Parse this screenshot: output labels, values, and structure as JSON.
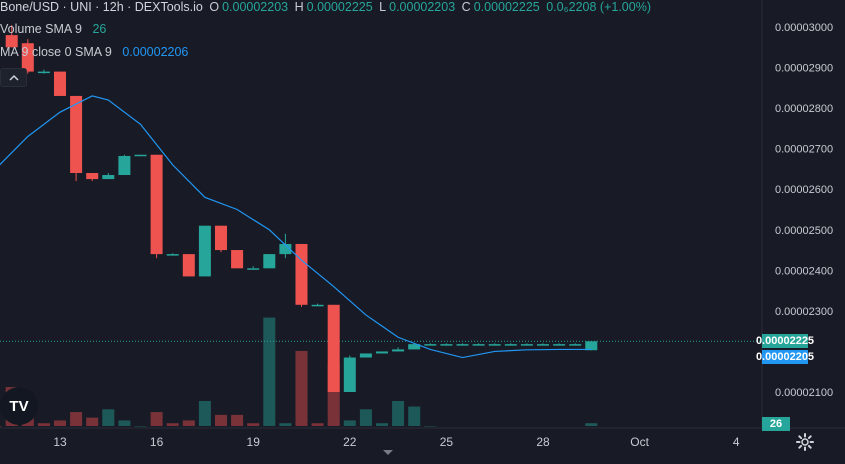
{
  "header": {
    "symbol": "Bone/USD · UNI · 12h · DEXTools.io",
    "o_key": "O",
    "o_val": "0.00002203",
    "h_key": "H",
    "h_val": "0.00002225",
    "l_key": "L",
    "l_val": "0.00002203",
    "c_key": "C",
    "c_val": "0.00002225",
    "change_val": "0.0₆2208 (+1.00%)"
  },
  "indicators": {
    "volume_label": "Volume SMA 9",
    "volume_val": "26",
    "ma_label": "MA 9 close 0 SMA 9",
    "ma_val": "0.00002206"
  },
  "badges": {
    "price_last": "0.00002225",
    "ma_last": "0.00002205",
    "volume_last": "26"
  },
  "tv_logo": "TV",
  "colors": {
    "up": "#26a69a",
    "down": "#ef5350",
    "ma": "#2196f3",
    "bg": "#181b25"
  },
  "icons": {
    "settings": "gear-icon",
    "collapse": "chevron-up-icon"
  },
  "chart_data": {
    "type": "candlestick",
    "y_ticks": [
      "0.00003000",
      "0.00002900",
      "0.00002800",
      "0.00002700",
      "0.00002600",
      "0.00002500",
      "0.00002400",
      "0.00002300",
      "0.00002100"
    ],
    "x_ticks": [
      "13",
      "16",
      "19",
      "22",
      "25",
      "28",
      "Oct",
      "4"
    ],
    "ylim": [
      2.04e-05,
      3.03e-05
    ],
    "series": [
      {
        "name": "Bone/USD",
        "candles": [
          {
            "day": 11.5,
            "o": 2.98e-05,
            "h": 3.005e-05,
            "l": 2.95e-05,
            "c": 2.95e-05
          },
          {
            "day": 12.0,
            "o": 2.96e-05,
            "h": 2.97e-05,
            "l": 2.885e-05,
            "c": 2.89e-05
          },
          {
            "day": 12.5,
            "o": 2.89e-05,
            "h": 2.895e-05,
            "l": 2.885e-05,
            "c": 2.89e-05
          },
          {
            "day": 13.0,
            "o": 2.89e-05,
            "h": 2.89e-05,
            "l": 2.83e-05,
            "c": 2.83e-05
          },
          {
            "day": 13.5,
            "o": 2.83e-05,
            "h": 2.83e-05,
            "l": 2.62e-05,
            "c": 2.64e-05
          },
          {
            "day": 14.0,
            "o": 2.64e-05,
            "h": 2.64e-05,
            "l": 2.62e-05,
            "c": 2.625e-05
          },
          {
            "day": 14.5,
            "o": 2.625e-05,
            "h": 2.64e-05,
            "l": 2.625e-05,
            "c": 2.635e-05
          },
          {
            "day": 15.0,
            "o": 2.635e-05,
            "h": 2.685e-05,
            "l": 2.635e-05,
            "c": 2.682e-05
          },
          {
            "day": 15.5,
            "o": 2.682e-05,
            "h": 2.685e-05,
            "l": 2.682e-05,
            "c": 2.685e-05
          },
          {
            "day": 16.0,
            "o": 2.685e-05,
            "h": 2.685e-05,
            "l": 2.43e-05,
            "c": 2.44e-05
          },
          {
            "day": 16.5,
            "o": 2.44e-05,
            "h": 2.442e-05,
            "l": 2.438e-05,
            "c": 2.44e-05
          },
          {
            "day": 17.0,
            "o": 2.44e-05,
            "h": 2.44e-05,
            "l": 2.385e-05,
            "c": 2.385e-05
          },
          {
            "day": 17.5,
            "o": 2.385e-05,
            "h": 2.51e-05,
            "l": 2.385e-05,
            "c": 2.51e-05
          },
          {
            "day": 18.0,
            "o": 2.51e-05,
            "h": 2.51e-05,
            "l": 2.445e-05,
            "c": 2.45e-05
          },
          {
            "day": 18.5,
            "o": 2.45e-05,
            "h": 2.45e-05,
            "l": 2.405e-05,
            "c": 2.405e-05
          },
          {
            "day": 19.0,
            "o": 2.405e-05,
            "h": 2.41e-05,
            "l": 2.405e-05,
            "c": 2.405e-05
          },
          {
            "day": 19.5,
            "o": 2.405e-05,
            "h": 2.44e-05,
            "l": 2.405e-05,
            "c": 2.44e-05
          },
          {
            "day": 20.0,
            "o": 2.44e-05,
            "h": 2.49e-05,
            "l": 2.43e-05,
            "c": 2.465e-05
          },
          {
            "day": 20.5,
            "o": 2.465e-05,
            "h": 2.465e-05,
            "l": 2.31e-05,
            "c": 2.315e-05
          },
          {
            "day": 21.0,
            "o": 2.315e-05,
            "h": 2.318e-05,
            "l": 2.312e-05,
            "c": 2.315e-05
          },
          {
            "day": 21.5,
            "o": 2.315e-05,
            "h": 2.315e-05,
            "l": 2.1e-05,
            "c": 2.1e-05
          },
          {
            "day": 22.0,
            "o": 2.1e-05,
            "h": 2.19e-05,
            "l": 2.1e-05,
            "c": 2.185e-05
          },
          {
            "day": 22.5,
            "o": 2.185e-05,
            "h": 2.195e-05,
            "l": 2.185e-05,
            "c": 2.195e-05
          },
          {
            "day": 23.0,
            "o": 2.195e-05,
            "h": 2.2e-05,
            "l": 2.195e-05,
            "c": 2.2e-05
          },
          {
            "day": 23.5,
            "o": 2.2e-05,
            "h": 2.21e-05,
            "l": 2.2e-05,
            "c": 2.205e-05
          },
          {
            "day": 24.0,
            "o": 2.205e-05,
            "h": 2.22e-05,
            "l": 2.205e-05,
            "c": 2.218e-05
          },
          {
            "day": 24.5,
            "o": 2.215e-05,
            "h": 2.22e-05,
            "l": 2.215e-05,
            "c": 2.218e-05
          },
          {
            "day": 25.0,
            "o": 2.218e-05,
            "h": 2.22e-05,
            "l": 2.216e-05,
            "c": 2.218e-05
          },
          {
            "day": 25.5,
            "o": 2.218e-05,
            "h": 2.22e-05,
            "l": 2.216e-05,
            "c": 2.218e-05
          },
          {
            "day": 26.0,
            "o": 2.218e-05,
            "h": 2.22e-05,
            "l": 2.216e-05,
            "c": 2.218e-05
          },
          {
            "day": 26.5,
            "o": 2.218e-05,
            "h": 2.22e-05,
            "l": 2.216e-05,
            "c": 2.218e-05
          },
          {
            "day": 27.0,
            "o": 2.218e-05,
            "h": 2.22e-05,
            "l": 2.216e-05,
            "c": 2.218e-05
          },
          {
            "day": 27.5,
            "o": 2.218e-05,
            "h": 2.22e-05,
            "l": 2.216e-05,
            "c": 2.218e-05
          },
          {
            "day": 28.0,
            "o": 2.218e-05,
            "h": 2.22e-05,
            "l": 2.216e-05,
            "c": 2.218e-05
          },
          {
            "day": 28.5,
            "o": 2.218e-05,
            "h": 2.22e-05,
            "l": 2.216e-05,
            "c": 2.218e-05
          },
          {
            "day": 29.0,
            "o": 2.218e-05,
            "h": 2.22e-05,
            "l": 2.216e-05,
            "c": 2.218e-05
          },
          {
            "day": 29.5,
            "o": 2.203e-05,
            "h": 2.225e-05,
            "l": 2.203e-05,
            "c": 2.225e-05
          }
        ]
      },
      {
        "name": "MA 9",
        "points": [
          [
            11.0,
            2.65e-05
          ],
          [
            12.0,
            2.73e-05
          ],
          [
            13.0,
            2.79e-05
          ],
          [
            14.0,
            2.83e-05
          ],
          [
            14.5,
            2.82e-05
          ],
          [
            15.5,
            2.76e-05
          ],
          [
            16.5,
            2.66e-05
          ],
          [
            17.5,
            2.58e-05
          ],
          [
            18.5,
            2.55e-05
          ],
          [
            19.5,
            2.5e-05
          ],
          [
            20.5,
            2.425e-05
          ],
          [
            21.5,
            2.36e-05
          ],
          [
            22.5,
            2.29e-05
          ],
          [
            23.5,
            2.235e-05
          ],
          [
            24.5,
            2.205e-05
          ],
          [
            25.5,
            2.185e-05
          ],
          [
            26.5,
            2.2e-05
          ],
          [
            27.5,
            2.204e-05
          ],
          [
            28.5,
            2.205e-05
          ],
          [
            29.5,
            2.205e-05
          ]
        ]
      }
    ],
    "volume": [
      {
        "day": 11.0,
        "v": 0,
        "dir": "down"
      },
      {
        "day": 11.5,
        "v": 14,
        "dir": "down"
      },
      {
        "day": 12.0,
        "v": 3,
        "dir": "down"
      },
      {
        "day": 12.5,
        "v": 1,
        "dir": "down"
      },
      {
        "day": 13.0,
        "v": 2,
        "dir": "down"
      },
      {
        "day": 13.5,
        "v": 5,
        "dir": "down"
      },
      {
        "day": 14.0,
        "v": 3,
        "dir": "down"
      },
      {
        "day": 14.5,
        "v": 6,
        "dir": "up"
      },
      {
        "day": 15.0,
        "v": 2,
        "dir": "up"
      },
      {
        "day": 15.5,
        "v": 0,
        "dir": "up"
      },
      {
        "day": 16.0,
        "v": 5,
        "dir": "down"
      },
      {
        "day": 16.5,
        "v": 1,
        "dir": "down"
      },
      {
        "day": 17.0,
        "v": 2,
        "dir": "down"
      },
      {
        "day": 17.5,
        "v": 9,
        "dir": "up"
      },
      {
        "day": 18.0,
        "v": 4,
        "dir": "down"
      },
      {
        "day": 18.5,
        "v": 4,
        "dir": "down"
      },
      {
        "day": 19.0,
        "v": 1,
        "dir": "down"
      },
      {
        "day": 19.5,
        "v": 39,
        "dir": "up"
      },
      {
        "day": 20.0,
        "v": 1,
        "dir": "up"
      },
      {
        "day": 20.5,
        "v": 27,
        "dir": "down"
      },
      {
        "day": 21.0,
        "v": 1,
        "dir": "down"
      },
      {
        "day": 21.5,
        "v": 22,
        "dir": "down"
      },
      {
        "day": 22.0,
        "v": 2,
        "dir": "up"
      },
      {
        "day": 22.5,
        "v": 6,
        "dir": "up"
      },
      {
        "day": 23.0,
        "v": 1,
        "dir": "up"
      },
      {
        "day": 23.5,
        "v": 9,
        "dir": "up"
      },
      {
        "day": 24.0,
        "v": 7,
        "dir": "up"
      },
      {
        "day": 24.5,
        "v": 0,
        "dir": "up"
      },
      {
        "day": 29.5,
        "v": 1,
        "dir": "up"
      }
    ]
  }
}
